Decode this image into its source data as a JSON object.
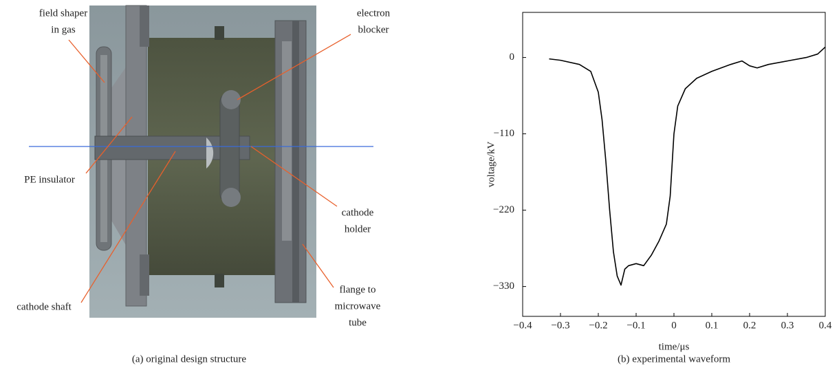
{
  "diagram": {
    "labels": [
      [
        "field shaper",
        "in gas"
      ],
      [
        "electron",
        "blocker"
      ],
      [
        "PE insulator"
      ],
      [
        "cathode",
        "holder"
      ],
      [
        "cathode shaft"
      ],
      [
        "flange to",
        "microwave",
        "tube"
      ]
    ],
    "caption": "(a) original design structure"
  },
  "chart_data": {
    "type": "line",
    "caption": "(b) experimental waveform",
    "xlabel": "time/μs",
    "ylabel": "voltage/kV",
    "x": [
      -0.33,
      -0.3,
      -0.25,
      -0.22,
      -0.2,
      -0.19,
      -0.18,
      -0.17,
      -0.16,
      -0.15,
      -0.14,
      -0.13,
      -0.12,
      -0.1,
      -0.08,
      -0.06,
      -0.04,
      -0.02,
      -0.01,
      0,
      0.01,
      0.03,
      0.06,
      0.1,
      0.15,
      0.18,
      0.2,
      0.22,
      0.25,
      0.3,
      0.35,
      0.38,
      0.4
    ],
    "series": [
      {
        "color": "#000000",
        "values": [
          -2,
          -4,
          -10,
          -20,
          -50,
          -90,
          -150,
          -220,
          -280,
          -315,
          -328,
          -305,
          -300,
          -297,
          -300,
          -285,
          -265,
          -240,
          -200,
          -110,
          -70,
          -45,
          -30,
          -20,
          -10,
          -5,
          -12,
          -15,
          -10,
          -5,
          0,
          5,
          15
        ]
      }
    ],
    "xlim": [
      -0.4,
      0.4
    ],
    "xticks": [
      {
        "value": -0.4,
        "label": "−0.4"
      },
      {
        "value": -0.3,
        "label": "−0.3"
      },
      {
        "value": -0.2,
        "label": "−0.2"
      },
      {
        "value": -0.1,
        "label": "−0.1"
      },
      0,
      0.1,
      0.2,
      0.3,
      0.4
    ],
    "ylim": [
      -373,
      65
    ],
    "yticks": [
      0,
      {
        "value": -110,
        "label": "−110"
      },
      {
        "value": -220,
        "label": "−220"
      },
      {
        "value": -330,
        "label": "−330"
      }
    ],
    "grid": false
  }
}
